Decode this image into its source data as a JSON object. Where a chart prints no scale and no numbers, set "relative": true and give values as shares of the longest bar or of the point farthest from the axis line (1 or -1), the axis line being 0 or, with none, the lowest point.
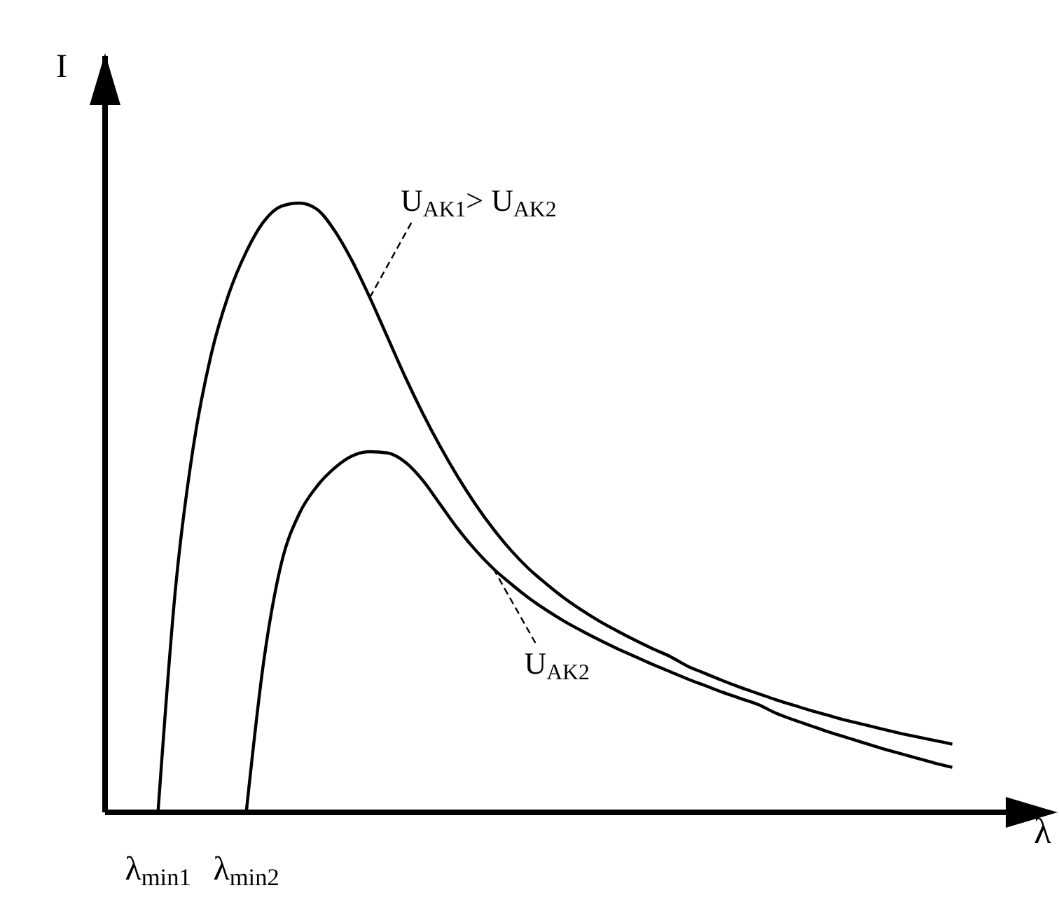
{
  "chart_data": {
    "type": "line",
    "relative": true,
    "xlabel": "λ",
    "ylabel": "I",
    "categories": [
      null,
      null,
      null,
      "λ$_{min1}$",
      null,
      null,
      null,
      null,
      "λ$_{min2}$",
      null,
      null,
      null,
      null,
      null,
      null,
      null,
      null,
      null,
      null,
      null,
      null,
      null,
      null,
      null,
      null,
      null,
      null,
      null,
      null,
      null,
      null,
      null,
      null,
      null,
      null,
      null,
      null,
      null,
      null,
      null,
      null,
      null,
      null,
      null,
      null,
      null,
      null,
      null,
      null
    ],
    "series": [
      {
        "name": "U$_{AK1}$> U$_{AK2}$",
        "color": "#000000",
        "values": [
          null,
          null,
          null,
          0,
          0.37,
          0.6,
          0.75,
          0.85,
          0.92,
          0.97,
          0.995,
          1,
          0.99,
          0.955,
          0.905,
          0.845,
          0.78,
          0.715,
          0.655,
          0.6,
          0.55,
          0.505,
          0.465,
          0.43,
          0.4,
          0.375,
          0.352,
          0.332,
          0.314,
          0.298,
          0.283,
          0.269,
          0.256,
          0.24,
          0.228,
          0.216,
          0.205,
          0.195,
          0.185,
          0.176,
          0.167,
          0.159,
          0.151,
          0.144,
          0.137,
          0.13,
          0.124,
          0.118,
          0.112
        ]
      },
      {
        "name": "U$_{AK2}$",
        "color": "#000000",
        "values": [
          null,
          null,
          null,
          null,
          null,
          null,
          null,
          null,
          0,
          0.25,
          0.41,
          0.49,
          0.535,
          0.565,
          0.585,
          0.592,
          0.59,
          0.575,
          0.545,
          0.505,
          0.465,
          0.43,
          0.4,
          0.375,
          0.352,
          0.332,
          0.314,
          0.298,
          0.283,
          0.269,
          0.256,
          0.243,
          0.231,
          0.219,
          0.208,
          0.197,
          0.187,
          0.177,
          0.163,
          0.152,
          0.142,
          0.132,
          0.123,
          0.114,
          0.105,
          0.097,
          0.089,
          0.081,
          0.074
        ]
      }
    ]
  }
}
